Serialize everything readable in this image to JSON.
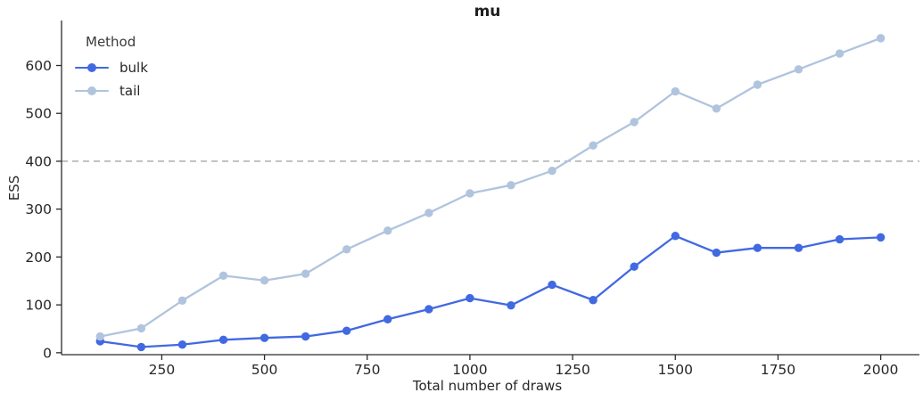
{
  "title": "mu",
  "colors": {
    "bulk": "#4169e1",
    "tail": "#b0c4de",
    "reference_line": "#a6a6a6",
    "spine": "#2b2b2b",
    "tick_text": "#262626"
  },
  "legend": {
    "title": "Method",
    "items": [
      {
        "label": "bulk",
        "color": "#4169e1"
      },
      {
        "label": "tail",
        "color": "#b0c4de"
      }
    ]
  },
  "chart_data": {
    "type": "line",
    "title": "mu",
    "xlabel": "Total number of draws",
    "ylabel": "ESS",
    "x": [
      100,
      200,
      300,
      400,
      500,
      600,
      700,
      800,
      900,
      1000,
      1100,
      1200,
      1300,
      1400,
      1500,
      1600,
      1700,
      1800,
      1900,
      2000
    ],
    "series": [
      {
        "name": "bulk",
        "color": "#4169e1",
        "values": [
          24,
          12,
          17,
          27,
          31,
          34,
          46,
          70,
          91,
          114,
          99,
          142,
          110,
          180,
          244,
          209,
          219,
          219,
          237,
          241
        ]
      },
      {
        "name": "tail",
        "color": "#b0c4de",
        "values": [
          34,
          51,
          109,
          161,
          151,
          165,
          216,
          255,
          292,
          333,
          350,
          380,
          433,
          482,
          546,
          510,
          560,
          592,
          625,
          657
        ]
      }
    ],
    "x_ticks": [
      250,
      500,
      750,
      1000,
      1250,
      1500,
      1750,
      2000
    ],
    "y_ticks": [
      0,
      100,
      200,
      300,
      400,
      500,
      600
    ],
    "xlim": [
      6,
      2079
    ],
    "ylim": [
      -4,
      694
    ],
    "reference_line_y": 400,
    "grid": false,
    "legend_position": "upper left"
  }
}
